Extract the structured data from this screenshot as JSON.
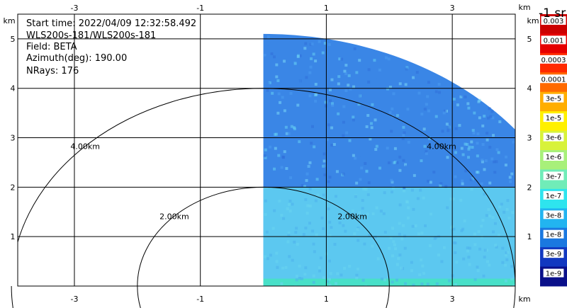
{
  "info": {
    "start_time": "Start time: 2022/04/09 12:32:58.492",
    "instrument": "WLS200s-181/WLS200s-181",
    "field": "Field: BETA",
    "azimuth": "Azimuth(deg): 190.00",
    "nrays": "NRays: 176"
  },
  "axes": {
    "x_ticks": [
      "-3",
      "-1",
      "1",
      "3"
    ],
    "x_tick_values": [
      -3,
      -1,
      1,
      3
    ],
    "x_unit": "km",
    "y_ticks": [
      "1",
      "2",
      "3",
      "4",
      "5"
    ],
    "y_tick_values": [
      1,
      2,
      3,
      4,
      5
    ],
    "y_unit": "km",
    "x_range": [
      -3.9,
      4.0
    ],
    "y_range": [
      0,
      5.5
    ]
  },
  "range_rings": [
    {
      "radius_km": 2,
      "labels": [
        "2.00km",
        "2.00km"
      ]
    },
    {
      "radius_km": 4,
      "labels": [
        "4.00km",
        "4.00km"
      ]
    }
  ],
  "rhi_data": {
    "x_start_km": 0.0,
    "max_range_km": 5.1,
    "colors_by_height": [
      {
        "max_km": 0.15,
        "color": "#48e0c8"
      },
      {
        "max_km": 2.0,
        "color": "#5cc8f0"
      },
      {
        "max_km": 5.1,
        "color": "#3a86e6"
      }
    ]
  },
  "colorbar": {
    "unit_label": "-1 sr",
    "labels": [
      "0.003",
      "0.001",
      "0.0003",
      "0.0001",
      "3e-5",
      "1e-5",
      "3e-6",
      "1e-6",
      "3e-7",
      "1e-7",
      "3e-8",
      "1e-8",
      "3e-9",
      "1e-9"
    ],
    "colors": [
      "#cc0000",
      "#e60000",
      "#ff2a00",
      "#ff6a00",
      "#ffae00",
      "#fff000",
      "#d8f23a",
      "#a8f07a",
      "#70ecb8",
      "#2ee4ee",
      "#22b4f0",
      "#1a78e0",
      "#1238c0",
      "#0a108a"
    ]
  }
}
